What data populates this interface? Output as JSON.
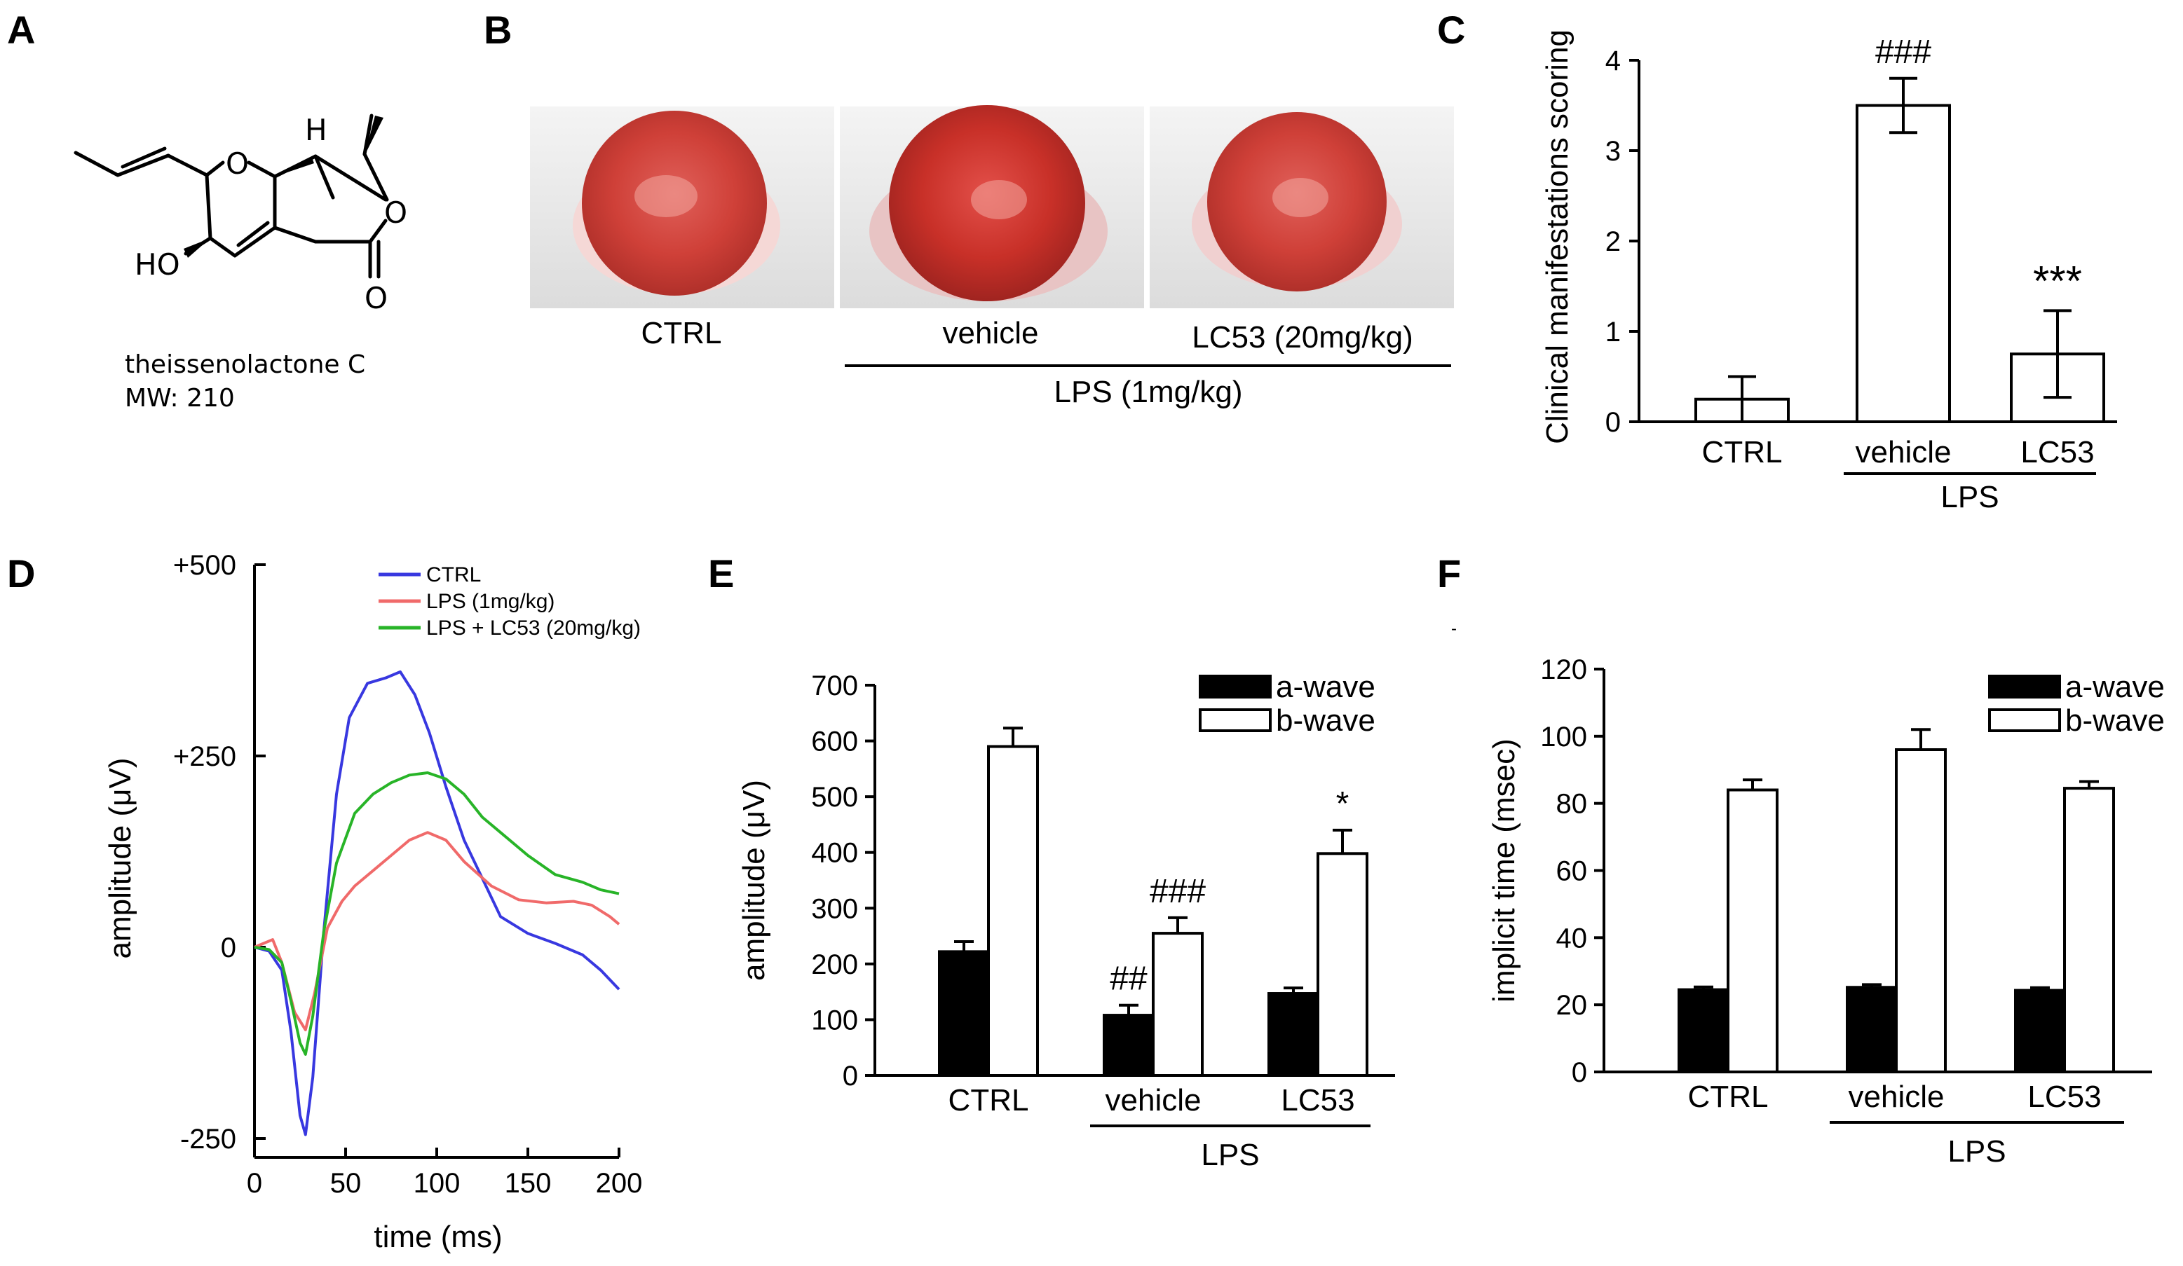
{
  "panels": {
    "A": "A",
    "B": "B",
    "C": "C",
    "D": "D",
    "E": "E",
    "F": "F"
  },
  "compound": {
    "name": "theissenolactone C",
    "mw": "MW: 210",
    "atoms": {
      "h": "H",
      "o_ring": "O",
      "o_lactone": "O",
      "o_carbonyl": "O",
      "ho": "HO"
    }
  },
  "photos": {
    "labels": [
      "CTRL",
      "vehicle",
      "LC53 (20mg/kg)"
    ],
    "group_label": "LPS (1mg/kg)"
  },
  "chart_data": [
    {
      "id": "C",
      "type": "bar",
      "ylabel": "Clinical manifestations scoring",
      "ylim": [
        0,
        4
      ],
      "yticks": [
        "0",
        "1",
        "2",
        "3",
        "4"
      ],
      "categories": [
        "CTRL",
        "vehicle",
        "LC53"
      ],
      "values": [
        0.25,
        3.5,
        0.75
      ],
      "errors": [
        0.25,
        0.3,
        0.48
      ],
      "significance": [
        "",
        "###",
        "***"
      ],
      "group_label": "LPS"
    },
    {
      "id": "D",
      "type": "line",
      "xlabel": "time (ms)",
      "ylabel": "amplitude (μV)",
      "xlim": [
        0,
        200
      ],
      "ylim": [
        -270,
        500
      ],
      "xticks": [
        "0",
        "50",
        "100",
        "150",
        "200"
      ],
      "yticks": [
        "+500",
        "+250",
        "0",
        "-250"
      ],
      "ytick_values": [
        500,
        250,
        0,
        -250
      ],
      "series": [
        {
          "name": "CTRL",
          "color": "#3838e0",
          "x": [
            0,
            8,
            15,
            20,
            25,
            28,
            32,
            38,
            45,
            52,
            62,
            72,
            80,
            88,
            96,
            105,
            115,
            125,
            135,
            150,
            165,
            180,
            190,
            200
          ],
          "y": [
            0,
            -5,
            -30,
            -110,
            -220,
            -245,
            -170,
            20,
            200,
            300,
            345,
            352,
            360,
            330,
            280,
            210,
            140,
            90,
            40,
            18,
            5,
            -10,
            -30,
            -55
          ]
        },
        {
          "name": "LPS (1mg/kg)",
          "color": "#f06a6a",
          "x": [
            0,
            5,
            10,
            15,
            22,
            28,
            33,
            40,
            48,
            55,
            65,
            75,
            85,
            95,
            105,
            115,
            130,
            145,
            160,
            175,
            185,
            195,
            200
          ],
          "y": [
            0,
            5,
            10,
            -20,
            -85,
            -108,
            -60,
            25,
            60,
            80,
            100,
            120,
            140,
            150,
            140,
            112,
            80,
            62,
            58,
            60,
            55,
            40,
            30
          ]
        },
        {
          "name": "LPS + LC53 (20mg/kg)",
          "color": "#28b428",
          "x": [
            0,
            8,
            15,
            20,
            25,
            28,
            32,
            38,
            45,
            55,
            65,
            75,
            85,
            95,
            105,
            115,
            125,
            135,
            150,
            165,
            180,
            190,
            200
          ],
          "y": [
            0,
            -3,
            -20,
            -70,
            -125,
            -140,
            -90,
            20,
            110,
            175,
            200,
            215,
            225,
            228,
            220,
            200,
            170,
            150,
            120,
            95,
            85,
            75,
            70
          ]
        }
      ]
    },
    {
      "id": "E",
      "type": "bar",
      "ylabel": "amplitude (μV)",
      "ylim": [
        0,
        700
      ],
      "yticks": [
        "0",
        "100",
        "200",
        "300",
        "400",
        "500",
        "600",
        "700"
      ],
      "categories": [
        "CTRL",
        "vehicle",
        "LC53"
      ],
      "series": [
        {
          "name": "a-wave",
          "color": "#000000",
          "values": [
            222,
            108,
            147
          ],
          "errors": [
            18,
            18,
            10
          ],
          "significance": [
            "",
            "##",
            ""
          ]
        },
        {
          "name": "b-wave",
          "color": "#ffffff",
          "values": [
            590,
            255,
            398
          ],
          "errors": [
            33,
            28,
            42
          ],
          "significance": [
            "",
            "###",
            "*"
          ]
        }
      ],
      "group_label": "LPS"
    },
    {
      "id": "F",
      "type": "bar",
      "ylabel": "implicit time (msec)",
      "ylim": [
        0,
        120
      ],
      "yticks": [
        "0",
        "20",
        "40",
        "60",
        "80",
        "100",
        "120"
      ],
      "categories": [
        "CTRL",
        "vehicle",
        "LC53"
      ],
      "series": [
        {
          "name": "a-wave",
          "color": "#000000",
          "values": [
            24.5,
            25.2,
            24.3
          ],
          "errors": [
            0.8,
            0.8,
            0.8
          ]
        },
        {
          "name": "b-wave",
          "color": "#ffffff",
          "values": [
            84,
            96,
            84.5
          ],
          "errors": [
            3,
            6,
            2
          ]
        }
      ],
      "group_label": "LPS"
    }
  ]
}
